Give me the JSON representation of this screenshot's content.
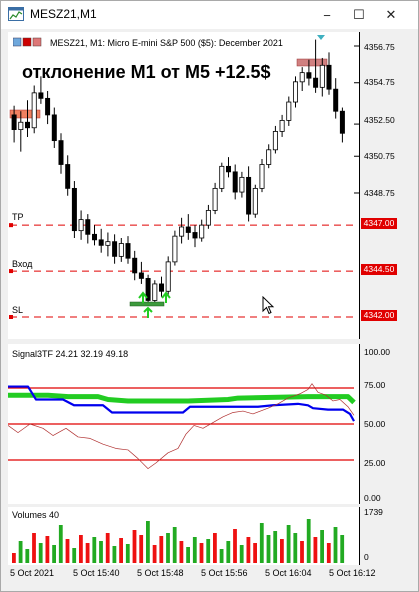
{
  "window": {
    "title": "MESZ21,M1",
    "controls": {
      "minimize": "−",
      "maximize": "☐",
      "close": "✕"
    }
  },
  "main_chart": {
    "symbol_line": "MESZ21, M1:  Micro E-mini S&P 500 ($5): December 2021",
    "overlay_text": "отклонение M1 от M5 +12.5$",
    "price_axis": [
      "4356.75",
      "4354.75",
      "4352.50",
      "4350.75",
      "4348.75"
    ],
    "levels": [
      {
        "label": "TP",
        "price": "4347.00",
        "value": 4347.0
      },
      {
        "label": "Вход",
        "price": "4344.50",
        "value": 4344.5
      },
      {
        "label": "SL",
        "price": "4342.00",
        "value": 4342.0
      }
    ]
  },
  "indicator": {
    "title": "Signal3TF 24.21 32.19 49.18",
    "axis": [
      "100.00",
      "75.00",
      "50.00",
      "25.00",
      "0.00"
    ],
    "levels": [
      75,
      50,
      25
    ]
  },
  "volumes": {
    "title": "Volumes 40",
    "axis": [
      "1739",
      "0"
    ]
  },
  "time_axis": [
    "5 Oct 2021",
    "5 Oct 15:40",
    "5 Oct 15:48",
    "5 Oct 15:56",
    "5 Oct 16:04",
    "5 Oct 16:12"
  ],
  "colors": {
    "level_line": "#e00000",
    "candle": "#000000",
    "green": "#22cc22",
    "blue": "#0000ee",
    "red": "#e00000",
    "orange": "#f08060"
  }
}
